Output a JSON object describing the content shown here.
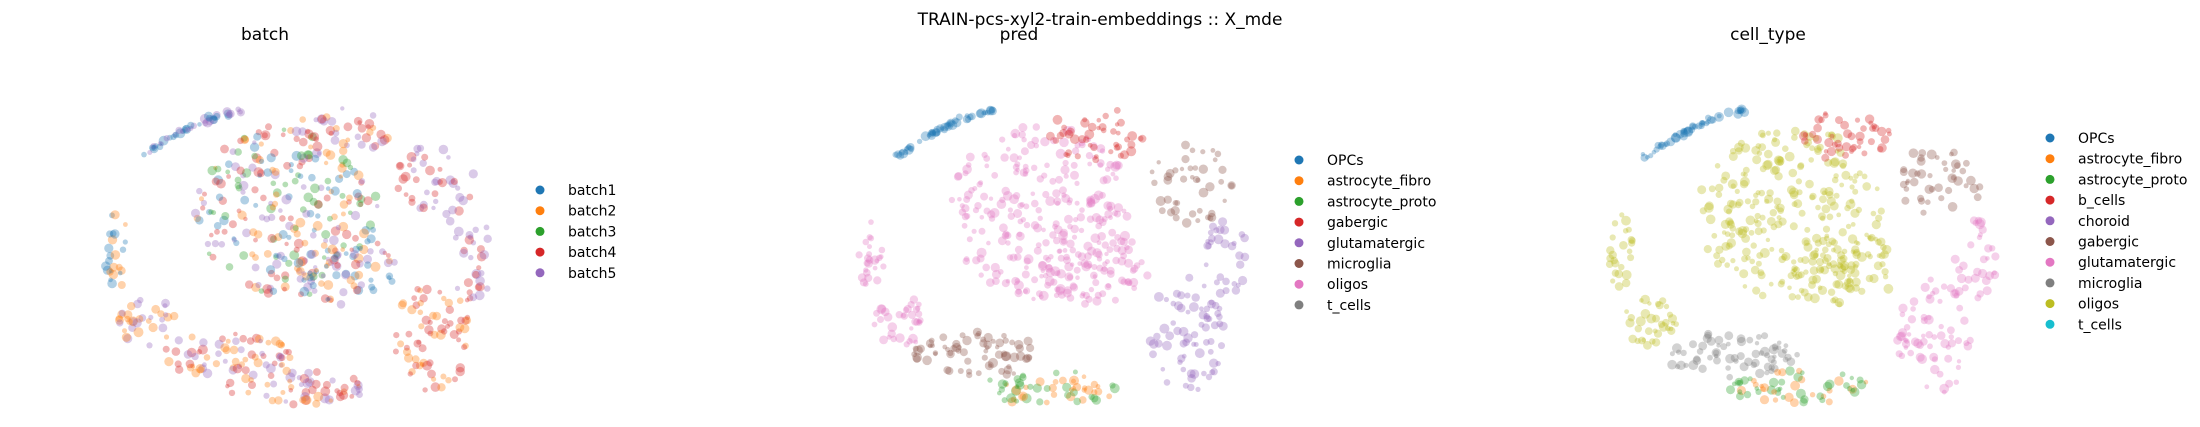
{
  "suptitle": "TRAIN-pcs-xyl2-train-embeddings :: X_mde",
  "chart_data": [
    {
      "type": "scatter",
      "title": "batch",
      "legend_position": "right",
      "axes_visible": false,
      "grid": false,
      "series": [
        {
          "name": "batch1",
          "color": "#1f77b4"
        },
        {
          "name": "batch2",
          "color": "#ff7f0e"
        },
        {
          "name": "batch3",
          "color": "#2ca02c"
        },
        {
          "name": "batch4",
          "color": "#d62728"
        },
        {
          "name": "batch5",
          "color": "#9467bd"
        }
      ]
    },
    {
      "type": "scatter",
      "title": "pred",
      "legend_position": "right",
      "axes_visible": false,
      "grid": false,
      "series": [
        {
          "name": "OPCs",
          "color": "#1f77b4"
        },
        {
          "name": "astrocyte_fibro",
          "color": "#ff7f0e"
        },
        {
          "name": "astrocyte_proto",
          "color": "#2ca02c"
        },
        {
          "name": "gabergic",
          "color": "#d62728"
        },
        {
          "name": "glutamatergic",
          "color": "#9467bd"
        },
        {
          "name": "microglia",
          "color": "#8c564b"
        },
        {
          "name": "oligos",
          "color": "#e377c2"
        },
        {
          "name": "t_cells",
          "color": "#7f7f7f"
        }
      ]
    },
    {
      "type": "scatter",
      "title": "cell_type",
      "legend_position": "right",
      "axes_visible": false,
      "grid": false,
      "series": [
        {
          "name": "OPCs",
          "color": "#1f77b4"
        },
        {
          "name": "astrocyte_fibro",
          "color": "#ff7f0e"
        },
        {
          "name": "astrocyte_proto",
          "color": "#2ca02c"
        },
        {
          "name": "b_cells",
          "color": "#d62728"
        },
        {
          "name": "choroid",
          "color": "#9467bd"
        },
        {
          "name": "gabergic",
          "color": "#8c564b"
        },
        {
          "name": "glutamatergic",
          "color": "#e377c2"
        },
        {
          "name": "microglia",
          "color": "#7f7f7f"
        },
        {
          "name": "oligos",
          "color": "#bcbd22"
        },
        {
          "name": "t_cells",
          "color": "#17becf"
        }
      ]
    }
  ]
}
